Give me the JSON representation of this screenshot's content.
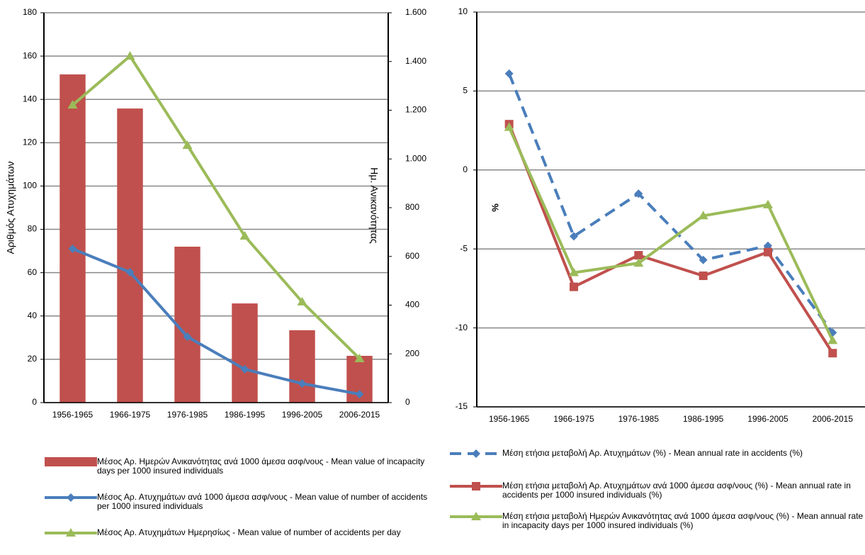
{
  "chart_data": [
    {
      "type": "bar",
      "categories": [
        "1956-1965",
        "1966-1975",
        "1976-1985",
        "1986-1995",
        "1996-2005",
        "2006-2015"
      ],
      "y_label": "Αριθμός Ατυχημάτων",
      "y2_label": "Ημ. Ανικανότητας",
      "ylim": [
        0,
        180
      ],
      "yticks": [
        0,
        20,
        40,
        60,
        80,
        100,
        120,
        140,
        160,
        180
      ],
      "y2lim": [
        0,
        1600
      ],
      "y2ticks": [
        0,
        200,
        400,
        600,
        800,
        {
          "value": 1000,
          "label": "1.000"
        },
        {
          "value": 1200,
          "label": "1.200"
        },
        {
          "value": 1400,
          "label": "1.400"
        },
        {
          "value": 1600,
          "label": "1.600"
        }
      ],
      "grid": true,
      "series": [
        {
          "name": "Μέσος Αρ. Ημερών Ανικανότητας ανά 1000 άμεσα ασφ/νους - Mean value of incapacity days per 1000 insured individuals",
          "color": "#c0504d",
          "type": "bar",
          "axis": "y2",
          "values": [
            1347,
            1207,
            640,
            407,
            297,
            192
          ]
        },
        {
          "name": "Μέσος Αρ. Ατυχημάτων ανά 1000 άμεσα ασφ/νους - Mean value of number of accidents per 1000 insured individuals",
          "color": "#4a7ebb",
          "type": "line",
          "marker": "diamond",
          "values": [
            71,
            60.2,
            30.4,
            15.4,
            8.8,
            3.9
          ]
        },
        {
          "name": "Μέσος Αρ. Ατυχημάτων Ημερησίως - Mean  value of number of accidents per day",
          "color": "#9bbb59",
          "type": "line",
          "marker": "triangle",
          "values": [
            137.4,
            160,
            118.8,
            76.9,
            46.5,
            20.3
          ]
        }
      ]
    },
    {
      "type": "line",
      "categories": [
        "1956-1965",
        "1966-1975",
        "1976-1985",
        "1986-1995",
        "1996-2005",
        "2006-2015"
      ],
      "y_label": "%",
      "ylim": [
        -15,
        10
      ],
      "yticks": [
        -15,
        -10,
        -5,
        0,
        5,
        10
      ],
      "grid": true,
      "series": [
        {
          "name": "Μέση ετήσια μεταβολή    Αρ. Ατυχημάτων (%) - Mean annual rate in accidents (%)",
          "color": "#4a7ebb",
          "type": "line",
          "marker": "diamond",
          "dash": true,
          "values": [
            6.1,
            -4.2,
            -1.5,
            -5.7,
            -4.8,
            -10.3
          ]
        },
        {
          "name": "Μέση ετήσια μεταβολή   Αρ. Ατυχημάτων ανά 1000 άμεσα ασφ/νους (%) - Mean annual rate in accidents per 1000 insured individuals (%)",
          "color": "#c0504d",
          "type": "line",
          "marker": "square",
          "values": [
            2.9,
            -7.4,
            -5.4,
            -6.7,
            -5.2,
            -11.6
          ]
        },
        {
          "name": "Μέση ετήσια μεταβολή Ημερών Ανικανότητας ανά 1000 άμεσα ασφ/νους (%) - Mean annual rate in incapacity days per 1000 insured individuals (%)",
          "color": "#9bbb59",
          "type": "line",
          "marker": "triangle",
          "values": [
            2.7,
            -6.5,
            -5.9,
            -2.9,
            -2.2,
            -10.8
          ]
        }
      ]
    }
  ]
}
